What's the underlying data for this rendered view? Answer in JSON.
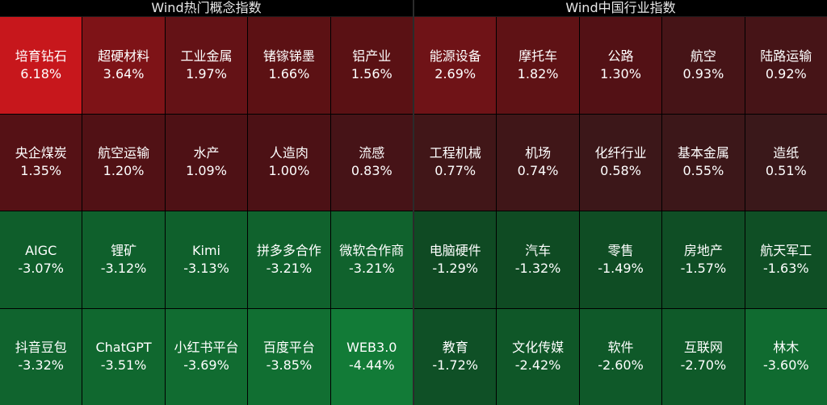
{
  "left_panel": {
    "title": "Wind热门概念指数",
    "cells": [
      {
        "name": "培育钻石",
        "value": "6.18%",
        "color": "#c7171c"
      },
      {
        "name": "超硬材料",
        "value": "3.64%",
        "color": "#7e1317"
      },
      {
        "name": "工业金属",
        "value": "1.97%",
        "color": "#641216"
      },
      {
        "name": "锗镓锑墨",
        "value": "1.66%",
        "color": "#5c1114"
      },
      {
        "name": "铝产业",
        "value": "1.56%",
        "color": "#5a1114"
      },
      {
        "name": "央企煤炭",
        "value": "1.35%",
        "color": "#551115"
      },
      {
        "name": "航空运输",
        "value": "1.20%",
        "color": "#511115"
      },
      {
        "name": "水产",
        "value": "1.09%",
        "color": "#4e1115"
      },
      {
        "name": "人造肉",
        "value": "1.00%",
        "color": "#4c1115"
      },
      {
        "name": "流感",
        "value": "0.83%",
        "color": "#461317"
      },
      {
        "name": "AIGC",
        "value": "-3.07%",
        "color": "#0f5e2b"
      },
      {
        "name": "锂矿",
        "value": "-3.12%",
        "color": "#0f602c"
      },
      {
        "name": "Kimi",
        "value": "-3.13%",
        "color": "#0f602c"
      },
      {
        "name": "拼多多合作",
        "value": "-3.21%",
        "color": "#10622d"
      },
      {
        "name": "微软合作商",
        "value": "-3.21%",
        "color": "#10622d"
      },
      {
        "name": "抖音豆包",
        "value": "-3.32%",
        "color": "#10642e"
      },
      {
        "name": "ChatGPT",
        "value": "-3.51%",
        "color": "#10682f"
      },
      {
        "name": "小红书平台",
        "value": "-3.69%",
        "color": "#116c31"
      },
      {
        "name": "百度平台",
        "value": "-3.85%",
        "color": "#116f32"
      },
      {
        "name": "WEB3.0",
        "value": "-4.44%",
        "color": "#127b37"
      }
    ]
  },
  "right_panel": {
    "title": "Wind中国行业指数",
    "cells": [
      {
        "name": "能源设备",
        "value": "2.69%",
        "color": "#6f1317"
      },
      {
        "name": "摩托车",
        "value": "1.82%",
        "color": "#5f1215"
      },
      {
        "name": "公路",
        "value": "1.30%",
        "color": "#531115"
      },
      {
        "name": "航空",
        "value": "0.93%",
        "color": "#461417"
      },
      {
        "name": "陆路运输",
        "value": "0.92%",
        "color": "#461417"
      },
      {
        "name": "工程机械",
        "value": "0.77%",
        "color": "#411618"
      },
      {
        "name": "机场",
        "value": "0.74%",
        "color": "#401618"
      },
      {
        "name": "化纤行业",
        "value": "0.58%",
        "color": "#3c1719"
      },
      {
        "name": "基本金属",
        "value": "0.55%",
        "color": "#3c1719"
      },
      {
        "name": "造纸",
        "value": "0.51%",
        "color": "#3a181a"
      },
      {
        "name": "电脑硬件",
        "value": "-1.29%",
        "color": "#0f4a23"
      },
      {
        "name": "汽车",
        "value": "-1.32%",
        "color": "#0f4b23"
      },
      {
        "name": "零售",
        "value": "-1.49%",
        "color": "#0f4d24"
      },
      {
        "name": "房地产",
        "value": "-1.57%",
        "color": "#0f4e25"
      },
      {
        "name": "航天军工",
        "value": "-1.63%",
        "color": "#0f4f25"
      },
      {
        "name": "教育",
        "value": "-1.72%",
        "color": "#0f5026"
      },
      {
        "name": "文化传媒",
        "value": "-2.42%",
        "color": "#0f5728"
      },
      {
        "name": "软件",
        "value": "-2.60%",
        "color": "#0f5929"
      },
      {
        "name": "互联网",
        "value": "-2.70%",
        "color": "#0f5a29"
      },
      {
        "name": "林木",
        "value": "-3.60%",
        "color": "#106b30"
      }
    ]
  }
}
